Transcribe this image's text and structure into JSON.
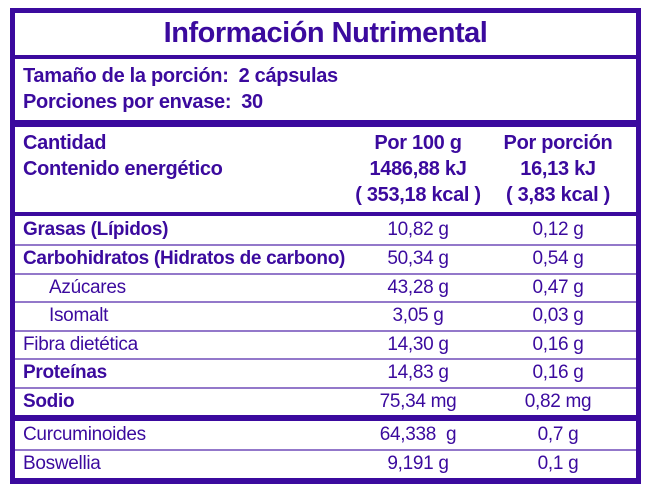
{
  "theme": {
    "accent_purple": "#3B0A9E",
    "separator_purple": "#8A75C9",
    "background": "#FFFFFF"
  },
  "title": "Información Nutrimental",
  "serving": [
    {
      "label": "Tamaño de la porción:",
      "value": "2 cápsulas"
    },
    {
      "label": "Porciones por envase:",
      "value": "30"
    }
  ],
  "header": {
    "row_label_line1": "Cantidad",
    "row_label_line2": "Contenido energético",
    "per100": {
      "label": "Por 100 g",
      "kj": "1486,88 kJ",
      "kcal": "( 353,18 kcal )"
    },
    "portion": {
      "label": "Por porción",
      "kj": "16,13 kJ",
      "kcal": "( 3,83 kcal )"
    }
  },
  "rows": [
    {
      "label": "Grasas (Lípidos)",
      "per100": "10,82 g",
      "portion": "0,12 g"
    },
    {
      "label": "Carbohidratos (Hidratos de carbono)",
      "per100": "50,34 g",
      "portion": "0,54 g"
    },
    {
      "label": "Azúcares",
      "per100": "43,28 g",
      "portion": "0,47 g"
    },
    {
      "label": "Isomalt",
      "per100": "3,05 g",
      "portion": "0,03 g"
    },
    {
      "label": "Fibra dietética",
      "per100": "14,30 g",
      "portion": "0,16 g"
    },
    {
      "label": "Proteínas",
      "per100": "14,83 g",
      "portion": "0,16 g"
    },
    {
      "label": "Sodio",
      "per100": "75,34 mg",
      "portion": "0,82 mg"
    }
  ],
  "footer_rows": [
    {
      "label": "Curcuminoides",
      "per100": "64,338  g",
      "portion": "0,7 g"
    },
    {
      "label": "Boswellia",
      "per100": "9,191 g",
      "portion": "0,1 g"
    }
  ]
}
